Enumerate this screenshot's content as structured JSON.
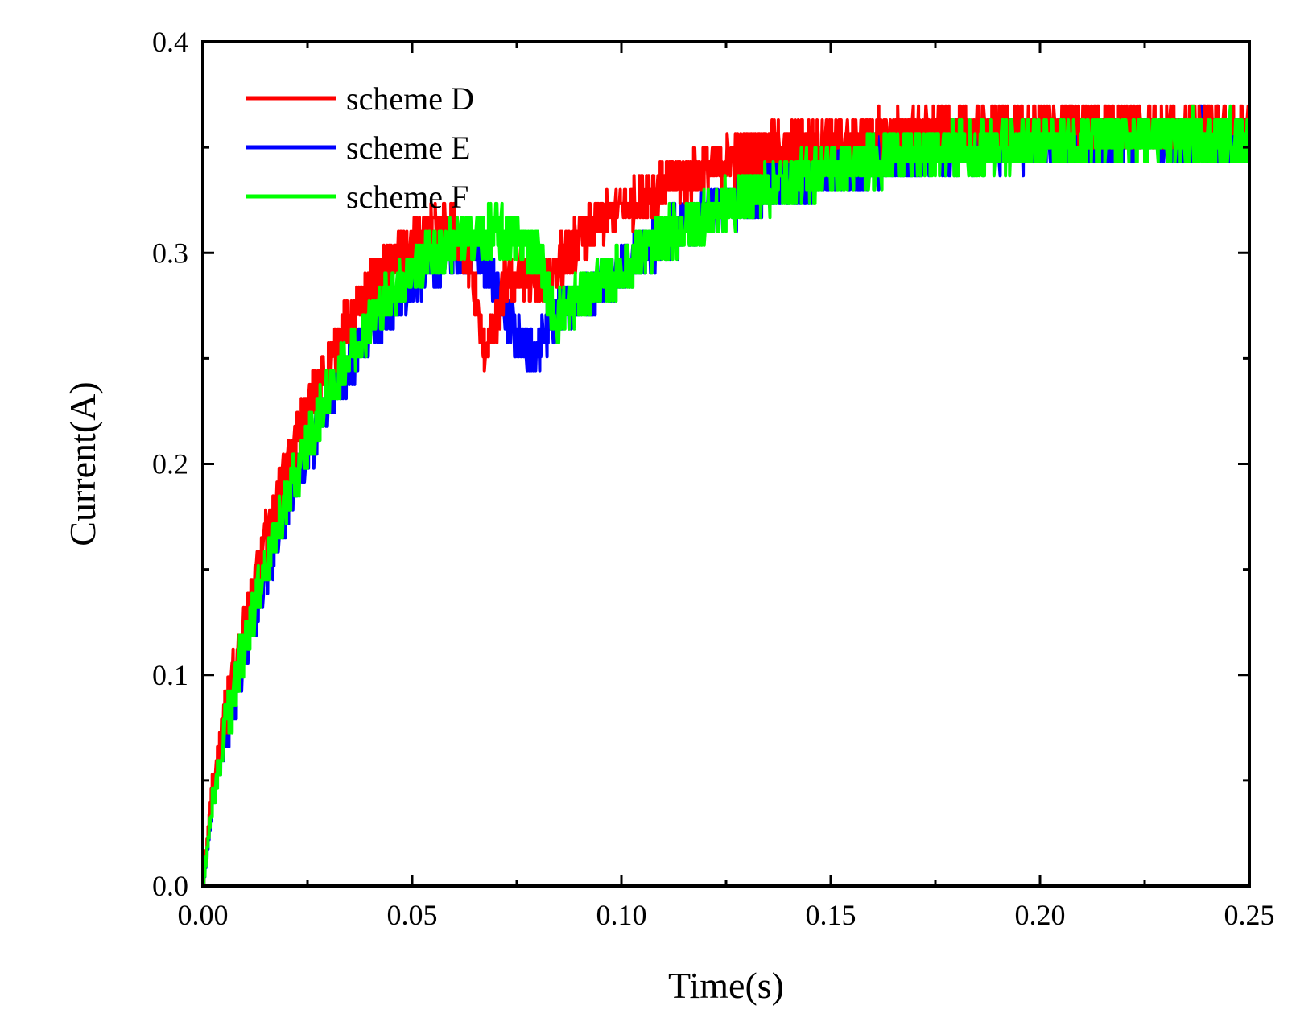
{
  "chart_data": {
    "type": "line",
    "title": "",
    "xlabel": "Time(s)",
    "ylabel": "Current(A)",
    "xlim": [
      0,
      0.25
    ],
    "ylim": [
      0,
      0.4
    ],
    "x_ticks": [
      0,
      0.05,
      0.1,
      0.15,
      0.2,
      0.25
    ],
    "x_tick_labels": [
      "0.00",
      "0.05",
      "0.10",
      "0.15",
      "0.20",
      "0.25"
    ],
    "y_ticks": [
      0,
      0.1,
      0.2,
      0.3,
      0.4
    ],
    "y_tick_labels": [
      "0.0",
      "0.1",
      "0.2",
      "0.3",
      "0.4"
    ],
    "grid": false,
    "legend_position": "top-left",
    "noise_band": 0.012,
    "series": [
      {
        "name": "scheme D",
        "color": "#ff0000",
        "x": [
          0,
          0.002,
          0.005,
          0.01,
          0.015,
          0.02,
          0.025,
          0.03,
          0.035,
          0.04,
          0.045,
          0.05,
          0.055,
          0.06,
          0.063,
          0.065,
          0.067,
          0.07,
          0.072,
          0.075,
          0.08,
          0.083,
          0.087,
          0.09,
          0.095,
          0.1,
          0.11,
          0.12,
          0.13,
          0.14,
          0.15,
          0.16,
          0.17,
          0.18,
          0.19,
          0.2,
          0.21,
          0.22,
          0.23,
          0.24,
          0.25
        ],
        "y": [
          0.0,
          0.045,
          0.08,
          0.125,
          0.165,
          0.198,
          0.225,
          0.248,
          0.268,
          0.283,
          0.295,
          0.303,
          0.309,
          0.311,
          0.3,
          0.28,
          0.255,
          0.265,
          0.285,
          0.29,
          0.285,
          0.29,
          0.3,
          0.305,
          0.315,
          0.322,
          0.332,
          0.34,
          0.346,
          0.35,
          0.353,
          0.355,
          0.356,
          0.357,
          0.358,
          0.358,
          0.359,
          0.359,
          0.359,
          0.359,
          0.359
        ]
      },
      {
        "name": "scheme E",
        "color": "#0000ff",
        "x": [
          0,
          0.002,
          0.005,
          0.01,
          0.015,
          0.02,
          0.025,
          0.03,
          0.035,
          0.04,
          0.045,
          0.05,
          0.055,
          0.06,
          0.065,
          0.068,
          0.07,
          0.073,
          0.075,
          0.078,
          0.08,
          0.082,
          0.085,
          0.09,
          0.1,
          0.11,
          0.12,
          0.13,
          0.14,
          0.15,
          0.16,
          0.17,
          0.18,
          0.19,
          0.2,
          0.21,
          0.22,
          0.23,
          0.24,
          0.25
        ],
        "y": [
          0.0,
          0.035,
          0.07,
          0.112,
          0.148,
          0.178,
          0.205,
          0.228,
          0.248,
          0.263,
          0.276,
          0.287,
          0.295,
          0.3,
          0.302,
          0.293,
          0.285,
          0.268,
          0.257,
          0.252,
          0.255,
          0.263,
          0.272,
          0.28,
          0.292,
          0.307,
          0.318,
          0.327,
          0.334,
          0.34,
          0.344,
          0.347,
          0.349,
          0.351,
          0.352,
          0.353,
          0.354,
          0.354,
          0.355,
          0.355
        ]
      },
      {
        "name": "scheme F",
        "color": "#00ff00",
        "x": [
          0,
          0.002,
          0.005,
          0.01,
          0.015,
          0.02,
          0.025,
          0.03,
          0.035,
          0.04,
          0.045,
          0.05,
          0.055,
          0.06,
          0.065,
          0.07,
          0.075,
          0.08,
          0.082,
          0.084,
          0.086,
          0.09,
          0.1,
          0.11,
          0.12,
          0.13,
          0.14,
          0.15,
          0.16,
          0.17,
          0.18,
          0.19,
          0.2,
          0.21,
          0.22,
          0.23,
          0.24,
          0.25
        ],
        "y": [
          0.0,
          0.037,
          0.072,
          0.115,
          0.152,
          0.183,
          0.21,
          0.233,
          0.252,
          0.268,
          0.281,
          0.292,
          0.3,
          0.305,
          0.308,
          0.31,
          0.308,
          0.3,
          0.285,
          0.27,
          0.272,
          0.28,
          0.292,
          0.307,
          0.318,
          0.327,
          0.334,
          0.34,
          0.344,
          0.347,
          0.349,
          0.351,
          0.352,
          0.353,
          0.354,
          0.354,
          0.355,
          0.355
        ]
      }
    ]
  }
}
